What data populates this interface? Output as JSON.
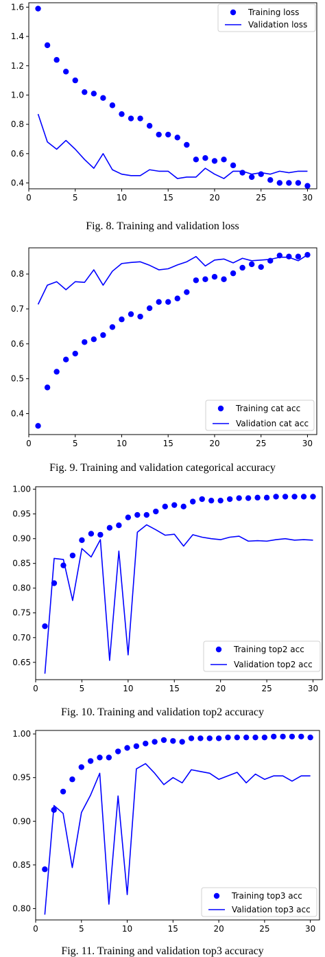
{
  "colors": {
    "series": "#0000ff",
    "axis": "#000000",
    "background": "#ffffff"
  },
  "chart_data": [
    {
      "type": "line",
      "caption": "Fig. 8. Training and validation loss",
      "xlim": [
        0,
        31
      ],
      "ylim": [
        0.36,
        1.63
      ],
      "xticks": [
        0,
        5,
        10,
        15,
        20,
        25,
        30
      ],
      "yticks": [
        0.4,
        0.6,
        0.8,
        1.0,
        1.2,
        1.4,
        1.6
      ],
      "ytick_labels": [
        "0.4",
        "0.6",
        "0.8",
        "1.0",
        "1.2",
        "1.4",
        "1.6"
      ],
      "legend_position": "top-right",
      "x": [
        1,
        2,
        3,
        4,
        5,
        6,
        7,
        8,
        9,
        10,
        11,
        12,
        13,
        14,
        15,
        16,
        17,
        18,
        19,
        20,
        21,
        22,
        23,
        24,
        25,
        26,
        27,
        28,
        29,
        30
      ],
      "series": [
        {
          "name": "Training loss",
          "style": "dots",
          "values": [
            1.59,
            1.34,
            1.24,
            1.16,
            1.1,
            1.02,
            1.01,
            0.98,
            0.93,
            0.87,
            0.84,
            0.84,
            0.79,
            0.73,
            0.73,
            0.71,
            0.66,
            0.56,
            0.57,
            0.55,
            0.56,
            0.52,
            0.47,
            0.44,
            0.46,
            0.42,
            0.4,
            0.4,
            0.4,
            0.38
          ]
        },
        {
          "name": "Validation loss",
          "style": "line",
          "values": [
            0.87,
            0.68,
            0.63,
            0.69,
            0.63,
            0.56,
            0.5,
            0.6,
            0.49,
            0.46,
            0.45,
            0.45,
            0.49,
            0.48,
            0.48,
            0.43,
            0.44,
            0.44,
            0.5,
            0.46,
            0.43,
            0.48,
            0.48,
            0.46,
            0.47,
            0.46,
            0.48,
            0.47,
            0.48,
            0.48
          ]
        }
      ]
    },
    {
      "type": "line",
      "caption": "Fig. 9. Training and validation categorical accuracy",
      "xlim": [
        0,
        31
      ],
      "ylim": [
        0.34,
        0.875
      ],
      "xticks": [
        0,
        5,
        10,
        15,
        20,
        25,
        30
      ],
      "yticks": [
        0.4,
        0.5,
        0.6,
        0.7,
        0.8
      ],
      "ytick_labels": [
        "0.4",
        "0.5",
        "0.6",
        "0.7",
        "0.8"
      ],
      "legend_position": "bottom-right",
      "x": [
        1,
        2,
        3,
        4,
        5,
        6,
        7,
        8,
        9,
        10,
        11,
        12,
        13,
        14,
        15,
        16,
        17,
        18,
        19,
        20,
        21,
        22,
        23,
        24,
        25,
        26,
        27,
        28,
        29,
        30
      ],
      "series": [
        {
          "name": "Training cat acc",
          "style": "dots",
          "values": [
            0.365,
            0.475,
            0.52,
            0.555,
            0.572,
            0.605,
            0.613,
            0.625,
            0.648,
            0.67,
            0.685,
            0.678,
            0.702,
            0.72,
            0.72,
            0.73,
            0.748,
            0.782,
            0.785,
            0.792,
            0.785,
            0.802,
            0.818,
            0.828,
            0.82,
            0.838,
            0.853,
            0.85,
            0.85,
            0.855
          ]
        },
        {
          "name": "Validation cat acc",
          "style": "line",
          "values": [
            0.713,
            0.768,
            0.778,
            0.755,
            0.778,
            0.776,
            0.812,
            0.768,
            0.808,
            0.83,
            0.833,
            0.835,
            0.825,
            0.812,
            0.815,
            0.826,
            0.835,
            0.85,
            0.823,
            0.84,
            0.843,
            0.832,
            0.845,
            0.838,
            0.84,
            0.842,
            0.848,
            0.848,
            0.838,
            0.855
          ]
        }
      ]
    },
    {
      "type": "line",
      "caption": "Fig. 10. Training and validation top2 accuracy",
      "xlim": [
        0,
        31
      ],
      "ylim": [
        0.615,
        1.005
      ],
      "xticks": [
        0,
        5,
        10,
        15,
        20,
        25,
        30
      ],
      "yticks": [
        0.65,
        0.7,
        0.75,
        0.8,
        0.85,
        0.9,
        0.95,
        1.0
      ],
      "ytick_labels": [
        "0.65",
        "0.70",
        "0.75",
        "0.80",
        "0.85",
        "0.90",
        "0.95",
        "1.00"
      ],
      "legend_position": "bottom-right",
      "x": [
        1,
        2,
        3,
        4,
        5,
        6,
        7,
        8,
        9,
        10,
        11,
        12,
        13,
        14,
        15,
        16,
        17,
        18,
        19,
        20,
        21,
        22,
        23,
        24,
        25,
        26,
        27,
        28,
        29,
        30
      ],
      "series": [
        {
          "name": "Training top2 acc",
          "style": "dots",
          "values": [
            0.723,
            0.81,
            0.846,
            0.866,
            0.897,
            0.91,
            0.908,
            0.922,
            0.927,
            0.943,
            0.948,
            0.948,
            0.955,
            0.965,
            0.968,
            0.965,
            0.975,
            0.98,
            0.977,
            0.977,
            0.98,
            0.982,
            0.982,
            0.983,
            0.983,
            0.985,
            0.985,
            0.985,
            0.985,
            0.985
          ]
        },
        {
          "name": "Validation top2 acc",
          "style": "line",
          "values": [
            0.627,
            0.86,
            0.858,
            0.775,
            0.88,
            0.863,
            0.898,
            0.654,
            0.875,
            0.665,
            0.913,
            0.928,
            0.918,
            0.907,
            0.909,
            0.885,
            0.908,
            0.903,
            0.9,
            0.898,
            0.903,
            0.905,
            0.895,
            0.896,
            0.895,
            0.898,
            0.9,
            0.897,
            0.898,
            0.897
          ]
        }
      ]
    },
    {
      "type": "line",
      "caption": "Fig. 11. Training and validation top3 accuracy",
      "xlim": [
        0,
        31
      ],
      "ylim": [
        0.787,
        1.004
      ],
      "xticks": [
        0,
        5,
        10,
        15,
        20,
        25,
        30
      ],
      "yticks": [
        0.8,
        0.85,
        0.9,
        0.95,
        1.0
      ],
      "ytick_labels": [
        "0.80",
        "0.85",
        "0.90",
        "0.95",
        "1.00"
      ],
      "legend_position": "bottom-right",
      "x": [
        1,
        2,
        3,
        4,
        5,
        6,
        7,
        8,
        9,
        10,
        11,
        12,
        13,
        14,
        15,
        16,
        17,
        18,
        19,
        20,
        21,
        22,
        23,
        24,
        25,
        26,
        27,
        28,
        29,
        30
      ],
      "series": [
        {
          "name": "Training top3 acc",
          "style": "dots",
          "values": [
            0.845,
            0.913,
            0.934,
            0.948,
            0.962,
            0.969,
            0.973,
            0.973,
            0.98,
            0.984,
            0.986,
            0.989,
            0.991,
            0.993,
            0.992,
            0.991,
            0.995,
            0.995,
            0.995,
            0.995,
            0.996,
            0.996,
            0.996,
            0.996,
            0.996,
            0.997,
            0.997,
            0.997,
            0.997,
            0.996
          ]
        },
        {
          "name": "Validation top3 acc",
          "style": "line",
          "values": [
            0.793,
            0.918,
            0.909,
            0.847,
            0.91,
            0.93,
            0.955,
            0.805,
            0.929,
            0.816,
            0.96,
            0.966,
            0.955,
            0.942,
            0.95,
            0.944,
            0.959,
            0.957,
            0.955,
            0.948,
            0.952,
            0.956,
            0.944,
            0.954,
            0.948,
            0.952,
            0.952,
            0.946,
            0.952,
            0.952
          ]
        }
      ]
    }
  ]
}
